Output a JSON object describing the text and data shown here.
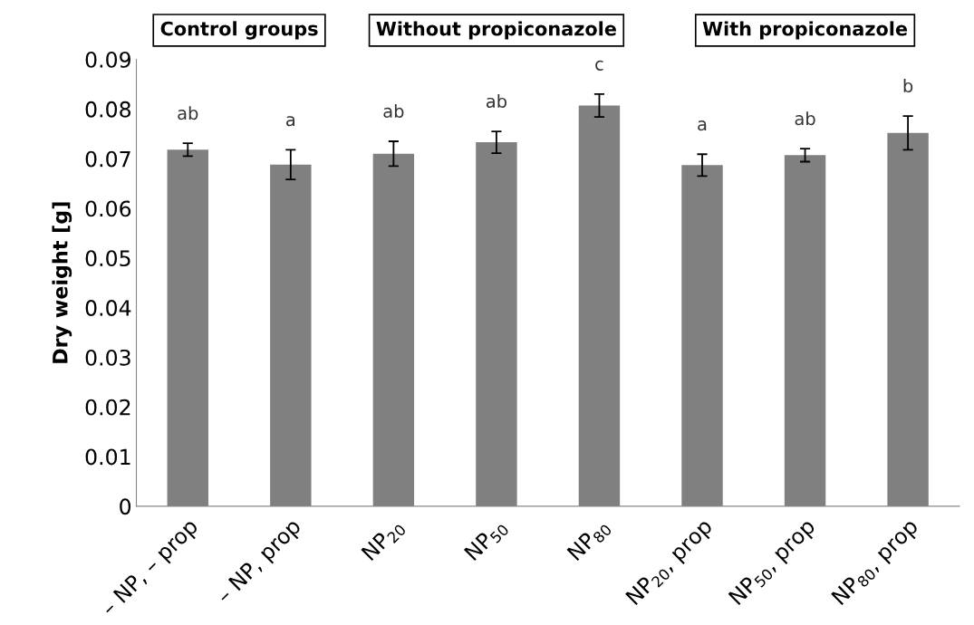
{
  "chart_data": {
    "type": "bar",
    "ylabel": "Dry weight [g]",
    "categories": [
      "– NP, – prop",
      "– NP, prop",
      "NP$_{20}$",
      "NP$_{50}$",
      "NP$_{80}$",
      "NP$_{20}$, prop",
      "NP$_{50}$, prop",
      "NP$_{80}$, prop"
    ],
    "values": [
      0.0718,
      0.0688,
      0.071,
      0.0733,
      0.0807,
      0.0687,
      0.0707,
      0.0752
    ],
    "errors": [
      0.0013,
      0.003,
      0.0025,
      0.0022,
      0.0023,
      0.0022,
      0.0013,
      0.0034
    ],
    "color": "#808080",
    "ylim": [
      0,
      0.09
    ],
    "yticks": [
      0,
      0.01,
      0.02,
      0.03,
      0.04,
      0.05,
      0.06,
      0.07,
      0.08,
      0.09
    ],
    "grid": false,
    "legend": false,
    "annotations": [
      "Control groups",
      "Without propiconazole",
      "With propiconazole",
      "ab",
      "a",
      "ab",
      "ab",
      "c",
      "a",
      "ab",
      "b"
    ]
  }
}
